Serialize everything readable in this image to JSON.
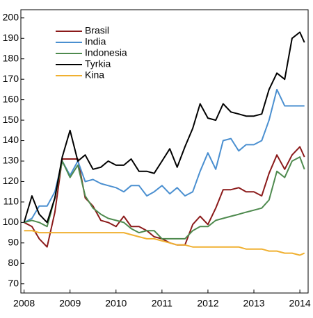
{
  "chart_data": {
    "type": "line",
    "x": [
      2008,
      2008.17,
      2008.33,
      2008.5,
      2008.67,
      2008.83,
      2009,
      2009.17,
      2009.33,
      2009.5,
      2009.67,
      2009.83,
      2010,
      2010.17,
      2010.33,
      2010.5,
      2010.67,
      2010.83,
      2011,
      2011.17,
      2011.33,
      2011.5,
      2011.67,
      2011.83,
      2012,
      2012.17,
      2012.33,
      2012.5,
      2012.67,
      2012.83,
      2013,
      2013.17,
      2013.33,
      2013.5,
      2013.67,
      2013.83,
      2014,
      2014.1
    ],
    "series": [
      {
        "name": "Brasil",
        "color": "#8b1a1a",
        "values": [
          100,
          98,
          92,
          88,
          105,
          131,
          131,
          131,
          112,
          108,
          101,
          100,
          98,
          103,
          98,
          98,
          96,
          93,
          92,
          90,
          89,
          89,
          99,
          103,
          99,
          107,
          116,
          116,
          117,
          115,
          115,
          113,
          124,
          133,
          126,
          133,
          137,
          132
        ]
      },
      {
        "name": "India",
        "color": "#4a8fd0",
        "values": [
          100,
          102,
          108,
          108,
          115,
          130,
          123,
          130,
          120,
          121,
          119,
          118,
          117,
          115,
          118,
          118,
          113,
          115,
          118,
          114,
          117,
          113,
          115,
          125,
          134,
          126,
          140,
          141,
          135,
          138,
          138,
          140,
          150,
          165,
          157,
          157,
          157,
          157
        ]
      },
      {
        "name": "Indonesia",
        "color": "#4e8a4e",
        "values": [
          100,
          101,
          100,
          98,
          112,
          130,
          122,
          128,
          113,
          107,
          104,
          102,
          101,
          100,
          97,
          95,
          96,
          96,
          92,
          92,
          92,
          92,
          96,
          98,
          98,
          101,
          102,
          103,
          104,
          105,
          106,
          107,
          111,
          125,
          122,
          130,
          132,
          126
        ]
      },
      {
        "name": "Tyrkia",
        "color": "#000000",
        "values": [
          100,
          113,
          104,
          100,
          112,
          132,
          145,
          130,
          133,
          126,
          127,
          130,
          128,
          128,
          131,
          125,
          125,
          124,
          130,
          136,
          127,
          137,
          146,
          158,
          151,
          150,
          158,
          154,
          153,
          152,
          152,
          153,
          165,
          173,
          170,
          190,
          193,
          188
        ]
      },
      {
        "name": "Kina",
        "color": "#f0b030",
        "values": [
          96,
          96,
          95,
          95,
          95,
          95,
          95,
          95,
          95,
          95,
          95,
          95,
          95,
          95,
          94,
          93,
          92,
          92,
          91,
          90,
          89,
          89,
          88,
          88,
          88,
          88,
          88,
          88,
          88,
          87,
          87,
          87,
          86,
          86,
          85,
          85,
          84,
          85
        ]
      }
    ],
    "xlim": [
      2007.93,
      2014.18
    ],
    "xticks": [
      2008,
      2009,
      2010,
      2011,
      2012,
      2013,
      2014
    ],
    "ylim": [
      65.5,
      204
    ],
    "yticks": [
      70,
      80,
      90,
      100,
      110,
      120,
      130,
      140,
      150,
      160,
      170,
      180,
      190,
      200
    ],
    "legend": "top-left"
  }
}
